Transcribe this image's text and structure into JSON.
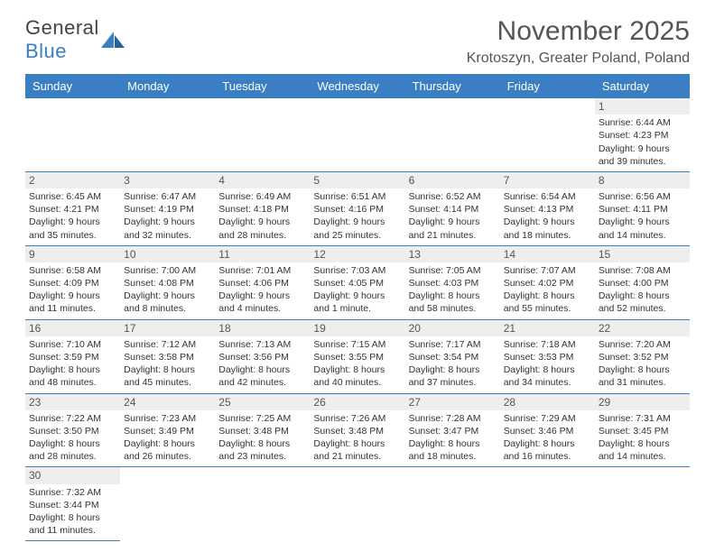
{
  "logo": {
    "text_a": "General",
    "text_b": "Blue"
  },
  "title": "November 2025",
  "location": "Krotoszyn, Greater Poland, Poland",
  "colors": {
    "header_bg": "#3a7fc4",
    "header_fg": "#ffffff",
    "daynum_bg": "#eeeeee",
    "border": "#3a7fc4",
    "text": "#333333"
  },
  "day_headers": [
    "Sunday",
    "Monday",
    "Tuesday",
    "Wednesday",
    "Thursday",
    "Friday",
    "Saturday"
  ],
  "first_weekday": 6,
  "days": [
    {
      "n": 1,
      "sunrise": "6:44 AM",
      "sunset": "4:23 PM",
      "dl": "9 hours and 39 minutes."
    },
    {
      "n": 2,
      "sunrise": "6:45 AM",
      "sunset": "4:21 PM",
      "dl": "9 hours and 35 minutes."
    },
    {
      "n": 3,
      "sunrise": "6:47 AM",
      "sunset": "4:19 PM",
      "dl": "9 hours and 32 minutes."
    },
    {
      "n": 4,
      "sunrise": "6:49 AM",
      "sunset": "4:18 PM",
      "dl": "9 hours and 28 minutes."
    },
    {
      "n": 5,
      "sunrise": "6:51 AM",
      "sunset": "4:16 PM",
      "dl": "9 hours and 25 minutes."
    },
    {
      "n": 6,
      "sunrise": "6:52 AM",
      "sunset": "4:14 PM",
      "dl": "9 hours and 21 minutes."
    },
    {
      "n": 7,
      "sunrise": "6:54 AM",
      "sunset": "4:13 PM",
      "dl": "9 hours and 18 minutes."
    },
    {
      "n": 8,
      "sunrise": "6:56 AM",
      "sunset": "4:11 PM",
      "dl": "9 hours and 14 minutes."
    },
    {
      "n": 9,
      "sunrise": "6:58 AM",
      "sunset": "4:09 PM",
      "dl": "9 hours and 11 minutes."
    },
    {
      "n": 10,
      "sunrise": "7:00 AM",
      "sunset": "4:08 PM",
      "dl": "9 hours and 8 minutes."
    },
    {
      "n": 11,
      "sunrise": "7:01 AM",
      "sunset": "4:06 PM",
      "dl": "9 hours and 4 minutes."
    },
    {
      "n": 12,
      "sunrise": "7:03 AM",
      "sunset": "4:05 PM",
      "dl": "9 hours and 1 minute."
    },
    {
      "n": 13,
      "sunrise": "7:05 AM",
      "sunset": "4:03 PM",
      "dl": "8 hours and 58 minutes."
    },
    {
      "n": 14,
      "sunrise": "7:07 AM",
      "sunset": "4:02 PM",
      "dl": "8 hours and 55 minutes."
    },
    {
      "n": 15,
      "sunrise": "7:08 AM",
      "sunset": "4:00 PM",
      "dl": "8 hours and 52 minutes."
    },
    {
      "n": 16,
      "sunrise": "7:10 AM",
      "sunset": "3:59 PM",
      "dl": "8 hours and 48 minutes."
    },
    {
      "n": 17,
      "sunrise": "7:12 AM",
      "sunset": "3:58 PM",
      "dl": "8 hours and 45 minutes."
    },
    {
      "n": 18,
      "sunrise": "7:13 AM",
      "sunset": "3:56 PM",
      "dl": "8 hours and 42 minutes."
    },
    {
      "n": 19,
      "sunrise": "7:15 AM",
      "sunset": "3:55 PM",
      "dl": "8 hours and 40 minutes."
    },
    {
      "n": 20,
      "sunrise": "7:17 AM",
      "sunset": "3:54 PM",
      "dl": "8 hours and 37 minutes."
    },
    {
      "n": 21,
      "sunrise": "7:18 AM",
      "sunset": "3:53 PM",
      "dl": "8 hours and 34 minutes."
    },
    {
      "n": 22,
      "sunrise": "7:20 AM",
      "sunset": "3:52 PM",
      "dl": "8 hours and 31 minutes."
    },
    {
      "n": 23,
      "sunrise": "7:22 AM",
      "sunset": "3:50 PM",
      "dl": "8 hours and 28 minutes."
    },
    {
      "n": 24,
      "sunrise": "7:23 AM",
      "sunset": "3:49 PM",
      "dl": "8 hours and 26 minutes."
    },
    {
      "n": 25,
      "sunrise": "7:25 AM",
      "sunset": "3:48 PM",
      "dl": "8 hours and 23 minutes."
    },
    {
      "n": 26,
      "sunrise": "7:26 AM",
      "sunset": "3:48 PM",
      "dl": "8 hours and 21 minutes."
    },
    {
      "n": 27,
      "sunrise": "7:28 AM",
      "sunset": "3:47 PM",
      "dl": "8 hours and 18 minutes."
    },
    {
      "n": 28,
      "sunrise": "7:29 AM",
      "sunset": "3:46 PM",
      "dl": "8 hours and 16 minutes."
    },
    {
      "n": 29,
      "sunrise": "7:31 AM",
      "sunset": "3:45 PM",
      "dl": "8 hours and 14 minutes."
    },
    {
      "n": 30,
      "sunrise": "7:32 AM",
      "sunset": "3:44 PM",
      "dl": "8 hours and 11 minutes."
    }
  ],
  "labels": {
    "sunrise": "Sunrise:",
    "sunset": "Sunset:",
    "daylight": "Daylight:"
  }
}
